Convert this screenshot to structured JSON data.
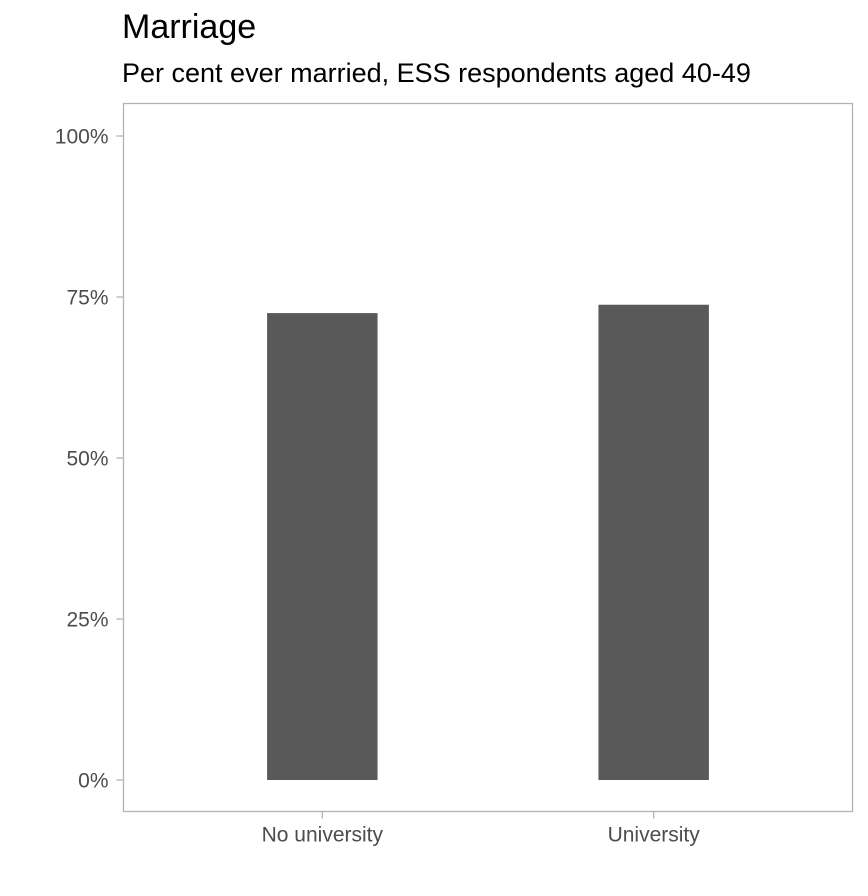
{
  "chart_data": {
    "type": "bar",
    "title": "Marriage",
    "subtitle": "Per cent ever married, ESS respondents aged 40-49",
    "xlabel": "",
    "ylabel": "",
    "categories": [
      "No university",
      "University"
    ],
    "values": [
      72.5,
      73.8
    ],
    "ylim": [
      0,
      100
    ],
    "yticks": [
      0,
      25,
      50,
      75,
      100
    ],
    "ytick_labels": [
      "0%",
      "25%",
      "50%",
      "75%",
      "100%"
    ],
    "grid": false,
    "bar_color": "#595959",
    "frame_color": "#b3b3b3",
    "axis_text_color": "#4d4d4d"
  }
}
